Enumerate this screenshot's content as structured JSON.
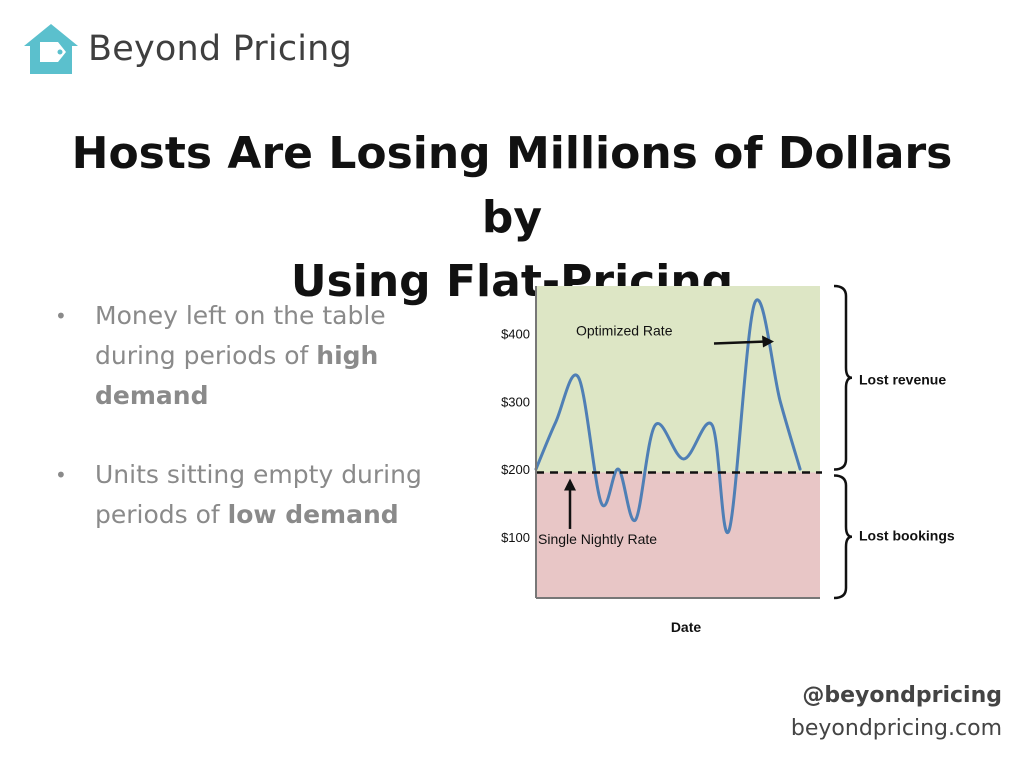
{
  "brand": {
    "name_part1": "Beyond",
    "name_part2": "Pricing",
    "icon": "house-tag-icon",
    "color": "#5bc0cd"
  },
  "title": {
    "line1": "Hosts Are Losing Millions of Dollars by",
    "line2": "Using Flat-Pricing"
  },
  "bullets": [
    {
      "text": "Money left on the table during periods of ",
      "bold": "high demand"
    },
    {
      "text": "Units sitting empty during periods of ",
      "bold": "low demand"
    }
  ],
  "footer": {
    "handle": "@beyondpricing",
    "website": "beyondpricing.com"
  },
  "colors": {
    "upper_fill": "#dde6c5",
    "lower_fill": "#e8c6c6",
    "line": "#4f7fb5",
    "text_dark": "#111111",
    "text_gray": "#8a8a8a"
  },
  "chart_data": {
    "type": "line",
    "xlabel": "Date",
    "ylabel": "",
    "ylim": [
      10,
      470
    ],
    "y_ticks": [
      "$100",
      "$200",
      "$300",
      "$400"
    ],
    "y_tick_values": [
      100,
      200,
      300,
      400
    ],
    "grid": false,
    "series": [
      {
        "name": "Optimized Rate",
        "x": [
          0,
          0.07,
          0.15,
          0.23,
          0.29,
          0.35,
          0.42,
          0.52,
          0.62,
          0.68,
          0.77,
          0.86,
          0.93
        ],
        "values": [
          200,
          270,
          335,
          150,
          200,
          125,
          265,
          215,
          265,
          110,
          445,
          300,
          200
        ]
      }
    ],
    "reference_line": {
      "label": "Single Nightly Rate",
      "value": 195
    },
    "regions": [
      {
        "label": "Lost revenue",
        "from": 195,
        "to": 470
      },
      {
        "label": "Lost bookings",
        "from": 10,
        "to": 195
      }
    ]
  }
}
